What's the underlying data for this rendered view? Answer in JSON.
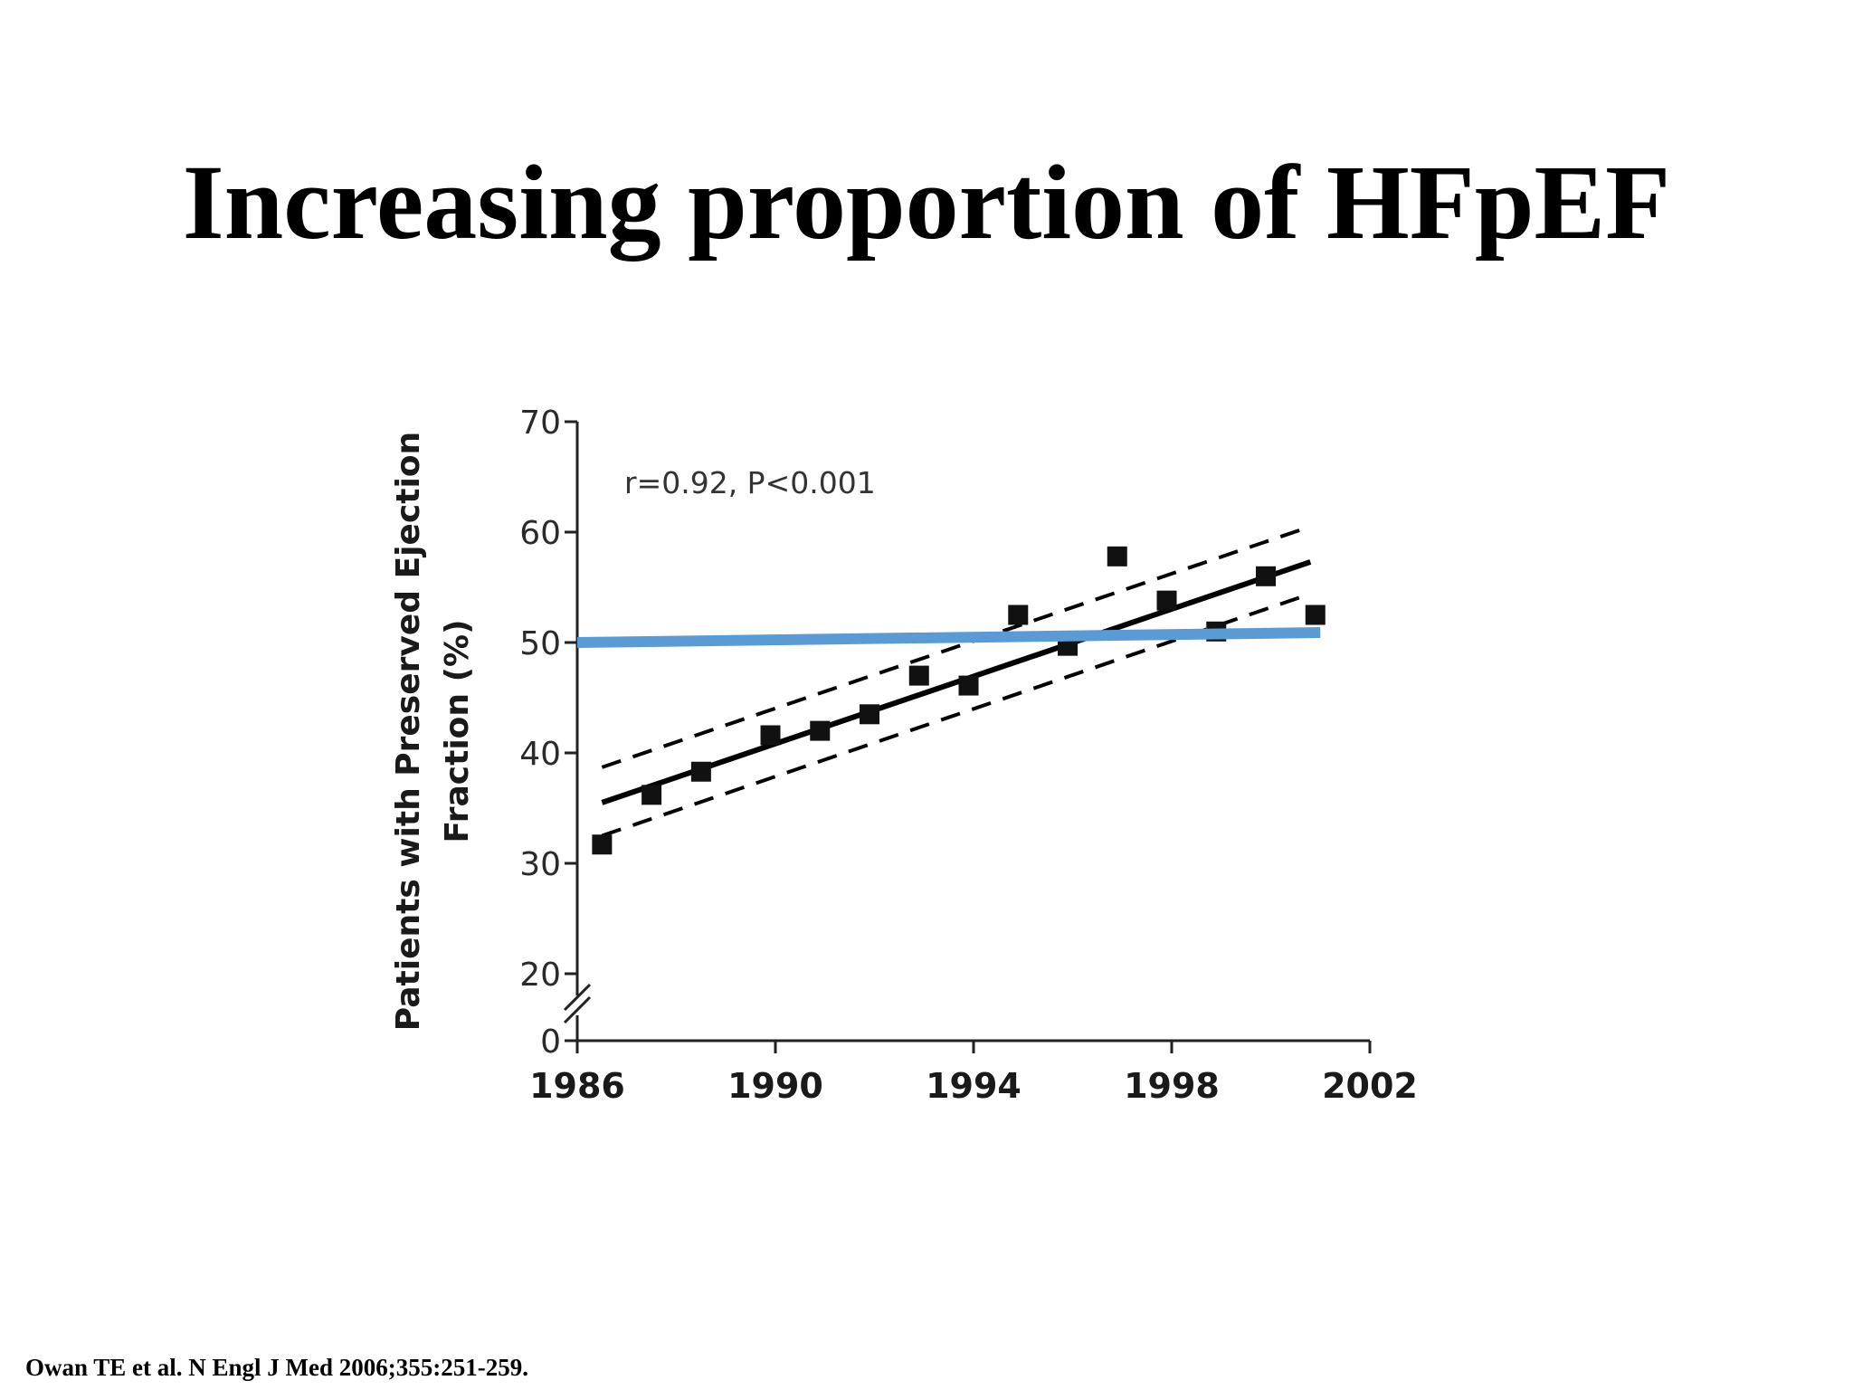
{
  "slide": {
    "title": "Increasing proportion of HFpEF",
    "citation": "Owan TE et al. N Engl J Med 2006;355:251-259."
  },
  "colors": {
    "points": "#111111",
    "regression": "#000000",
    "reference_line": "#5b9bd5"
  },
  "chart_data": {
    "type": "scatter",
    "title": "",
    "xlabel": "",
    "ylabel_lines": [
      "Patients with Preserved Ejection",
      "Fraction (%)"
    ],
    "xlim": [
      1986,
      2002
    ],
    "ylim": [
      0,
      70
    ],
    "axis_break_between": [
      0,
      20
    ],
    "x_ticks": [
      "1986",
      "1990",
      "1994",
      "1998",
      "2002"
    ],
    "y_ticks": [
      "0",
      "20",
      "30",
      "40",
      "50",
      "60",
      "70"
    ],
    "grid": false,
    "annotation": "r=0.92, P<0.001",
    "series": [
      {
        "type": "scatter",
        "marker": "square",
        "points": [
          {
            "x": 1986.5,
            "y": 31.7
          },
          {
            "x": 1987.5,
            "y": 36.2
          },
          {
            "x": 1988.5,
            "y": 38.3
          },
          {
            "x": 1989.9,
            "y": 41.6
          },
          {
            "x": 1990.9,
            "y": 42.0
          },
          {
            "x": 1991.9,
            "y": 43.5
          },
          {
            "x": 1992.9,
            "y": 47.0
          },
          {
            "x": 1993.9,
            "y": 46.1
          },
          {
            "x": 1994.9,
            "y": 52.5
          },
          {
            "x": 1995.9,
            "y": 49.7
          },
          {
            "x": 1996.9,
            "y": 57.8
          },
          {
            "x": 1997.9,
            "y": 53.8
          },
          {
            "x": 1998.9,
            "y": 51.0
          },
          {
            "x": 1999.9,
            "y": 56.0
          },
          {
            "x": 2000.9,
            "y": 52.5
          }
        ]
      },
      {
        "type": "line",
        "style": "solid",
        "points": [
          {
            "x": 1986.5,
            "y": 35.5
          },
          {
            "x": 2000.8,
            "y": 57.3
          }
        ]
      },
      {
        "type": "line",
        "style": "dashed",
        "points": [
          {
            "x": 1986.5,
            "y": 38.7
          },
          {
            "x": 2000.6,
            "y": 60.2
          }
        ]
      },
      {
        "type": "line",
        "style": "dashed",
        "points": [
          {
            "x": 1986.5,
            "y": 32.5
          },
          {
            "x": 2000.6,
            "y": 54.1
          }
        ]
      },
      {
        "type": "line",
        "style": "reference",
        "points": [
          {
            "x": 1986,
            "y": 50.0
          },
          {
            "x": 2001,
            "y": 50.9
          }
        ]
      }
    ]
  }
}
